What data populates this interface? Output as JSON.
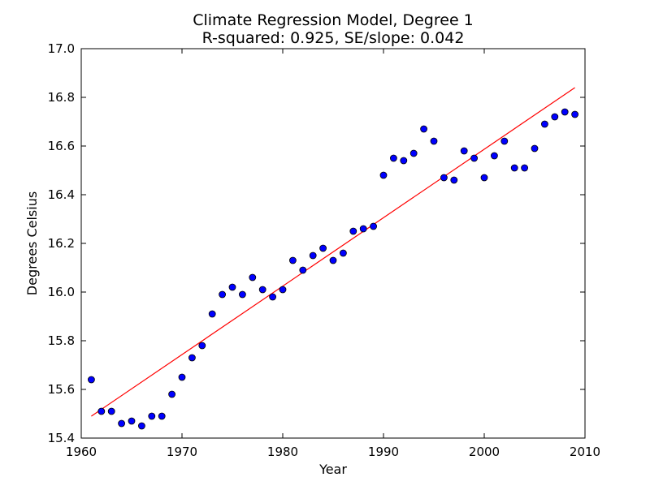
{
  "chart_data": {
    "type": "scatter",
    "title_line1": "Climate Regression Model, Degree 1",
    "title_line2": "R-squared: 0.925, SE/slope: 0.042",
    "xlabel": "Year",
    "ylabel": "Degrees Celsius",
    "xlim": [
      1960,
      2010
    ],
    "ylim": [
      15.4,
      17.0
    ],
    "x_ticks": [
      1960,
      1970,
      1980,
      1990,
      2000,
      2010
    ],
    "y_ticks": [
      15.4,
      15.6,
      15.8,
      16.0,
      16.2,
      16.4,
      16.6,
      16.8,
      17.0
    ],
    "grid": false,
    "legend": "none",
    "colors": {
      "points": "#0000ff",
      "fit": "#ff0000",
      "axes": "#000000"
    },
    "points": {
      "x": [
        1961,
        1962,
        1963,
        1964,
        1965,
        1966,
        1967,
        1968,
        1969,
        1970,
        1971,
        1972,
        1973,
        1974,
        1975,
        1976,
        1977,
        1978,
        1979,
        1980,
        1981,
        1982,
        1983,
        1984,
        1985,
        1986,
        1987,
        1988,
        1989,
        1990,
        1991,
        1992,
        1993,
        1994,
        1995,
        1996,
        1997,
        1998,
        1999,
        2000,
        2001,
        2002,
        2003,
        2004,
        2005,
        2006,
        2007,
        2008,
        2009
      ],
      "y": [
        15.64,
        15.51,
        15.51,
        15.46,
        15.47,
        15.45,
        15.49,
        15.49,
        15.58,
        15.65,
        15.73,
        15.78,
        15.91,
        15.99,
        16.02,
        15.99,
        16.06,
        16.01,
        15.98,
        16.01,
        16.13,
        16.09,
        16.15,
        16.18,
        16.13,
        16.16,
        16.25,
        16.26,
        16.27,
        16.48,
        16.55,
        16.54,
        16.57,
        16.67,
        16.62,
        16.47,
        16.46,
        16.58,
        16.55,
        16.47,
        16.56,
        16.62,
        16.51,
        16.51,
        16.59,
        16.69,
        16.72,
        16.74,
        16.73
      ]
    },
    "fit_line": {
      "x": [
        1961,
        2009
      ],
      "y": [
        15.49,
        16.84
      ]
    }
  }
}
